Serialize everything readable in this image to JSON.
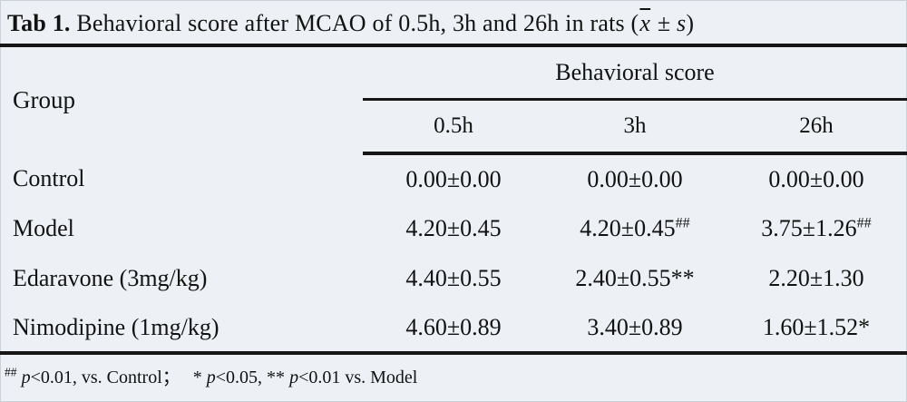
{
  "title": {
    "label": "Tab 1.",
    "text": " Behavioral score after MCAO of 0.5h, 3h and 26h in rats (",
    "xbar": "x",
    "pm": " ± ",
    "s": "s",
    "close": ")"
  },
  "table": {
    "group_header": "Group",
    "span_header": "Behavioral score",
    "columns": [
      "0.5h",
      "3h",
      "26h"
    ],
    "rows": [
      {
        "group": "Control",
        "cells": [
          {
            "value": "0.00±0.00",
            "sup": ""
          },
          {
            "value": "0.00±0.00",
            "sup": ""
          },
          {
            "value": "0.00±0.00",
            "sup": ""
          }
        ]
      },
      {
        "group": "Model",
        "cells": [
          {
            "value": "4.20±0.45",
            "sup": ""
          },
          {
            "value": "4.20±0.45",
            "sup": "##"
          },
          {
            "value": "3.75±1.26",
            "sup": "##"
          }
        ]
      },
      {
        "group": "Edaravone (3mg/kg)",
        "cells": [
          {
            "value": "4.40±0.55",
            "sup": ""
          },
          {
            "value": "2.40±0.55**",
            "sup": ""
          },
          {
            "value": "2.20±1.30",
            "sup": ""
          }
        ]
      },
      {
        "group": "Nimodipine (1mg/kg)",
        "cells": [
          {
            "value": "4.60±0.89",
            "sup": ""
          },
          {
            "value": "3.40±0.89",
            "sup": ""
          },
          {
            "value": "1.60±1.52*",
            "sup": ""
          }
        ]
      }
    ]
  },
  "footnote": {
    "marker": "##",
    "p1": "p",
    "t1": "<0.01, vs. Control；",
    "star1": "* ",
    "p2": "p",
    "t2": "<0.05, ** ",
    "p3": "p",
    "t3": "<0.01 vs. Model"
  },
  "colors": {
    "background": "#edf0f4",
    "text": "#121212",
    "rule": "#161616"
  }
}
